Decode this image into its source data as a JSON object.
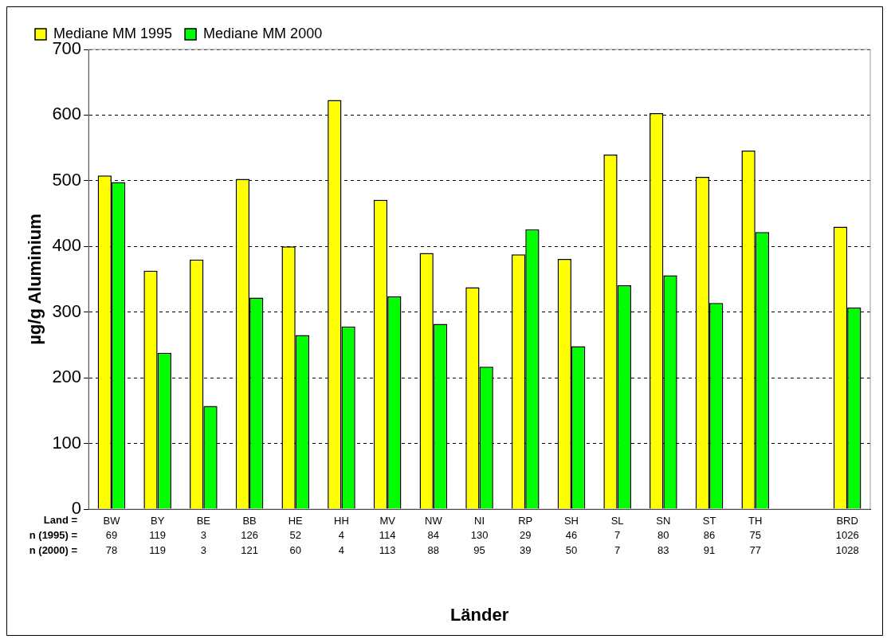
{
  "chart_data": {
    "type": "bar",
    "xlabel": "Länder",
    "ylabel": "µg/g Aluminium",
    "categories": [
      "BW",
      "BY",
      "BE",
      "BB",
      "HE",
      "HH",
      "MV",
      "NW",
      "NI",
      "RP",
      "SH",
      "SL",
      "SN",
      "ST",
      "TH",
      null,
      "BRD"
    ],
    "series": [
      {
        "name": "Mediane MM 1995",
        "color": "#ffff00",
        "values": [
          508,
          363,
          380,
          503,
          400,
          623,
          471,
          390,
          338,
          388,
          381,
          540,
          603,
          506,
          546,
          null,
          430
        ]
      },
      {
        "name": "Mediane MM 2000",
        "color": "#00ff00",
        "values": [
          498,
          238,
          157,
          322,
          265,
          278,
          324,
          282,
          217,
          426,
          248,
          341,
          356,
          314,
          422,
          null,
          307
        ]
      }
    ],
    "ylim": [
      0,
      700
    ],
    "yticks": [
      0,
      100,
      200,
      300,
      400,
      500,
      600,
      700
    ],
    "grid": "y",
    "legend": "top left",
    "annotations": [
      "Land =",
      "n (1995) =",
      "69",
      "119",
      "3",
      "126",
      "52",
      "4",
      "114",
      "84",
      "130",
      "29",
      "46",
      "7",
      "80",
      "86",
      "75",
      "1026",
      "n (2000) =",
      "78",
      "119",
      "3",
      "121",
      "60",
      "4",
      "113",
      "88",
      "95",
      "39",
      "50",
      "7",
      "83",
      "91",
      "77",
      "1028"
    ]
  }
}
